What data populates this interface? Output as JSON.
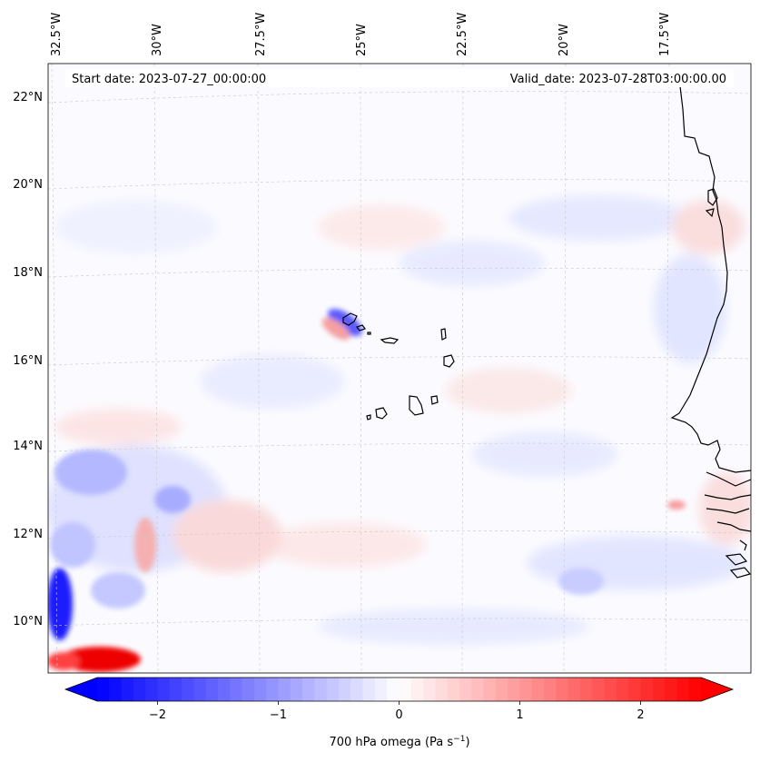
{
  "map": {
    "start_date": "Start date: 2023-07-27_00:00:00",
    "valid_date": "Valid_date: 2023-07-28T03:00:00.00",
    "lon_labels": [
      "32.5°W",
      "30°W",
      "27.5°W",
      "25°W",
      "22.5°W",
      "20°W",
      "17.5°W"
    ],
    "lat_labels": [
      "22°N",
      "20°N",
      "18°N",
      "16°N",
      "14°N",
      "12°N",
      "10°N"
    ],
    "variable": "700 hPa omega"
  },
  "colorbar": {
    "ticks": [
      "−2",
      "−1",
      "0",
      "1",
      "2"
    ],
    "tick_values": [
      -2,
      -1,
      0,
      1,
      2
    ],
    "vmin": -2.5,
    "vmax": 2.5,
    "label_main": "700 hPa omega (Pa s",
    "label_exp": "−1",
    "label_end": ")",
    "cmap": "bwr",
    "low_color": "#0000ff",
    "mid_color": "#ffffff",
    "high_color": "#ff0000"
  }
}
